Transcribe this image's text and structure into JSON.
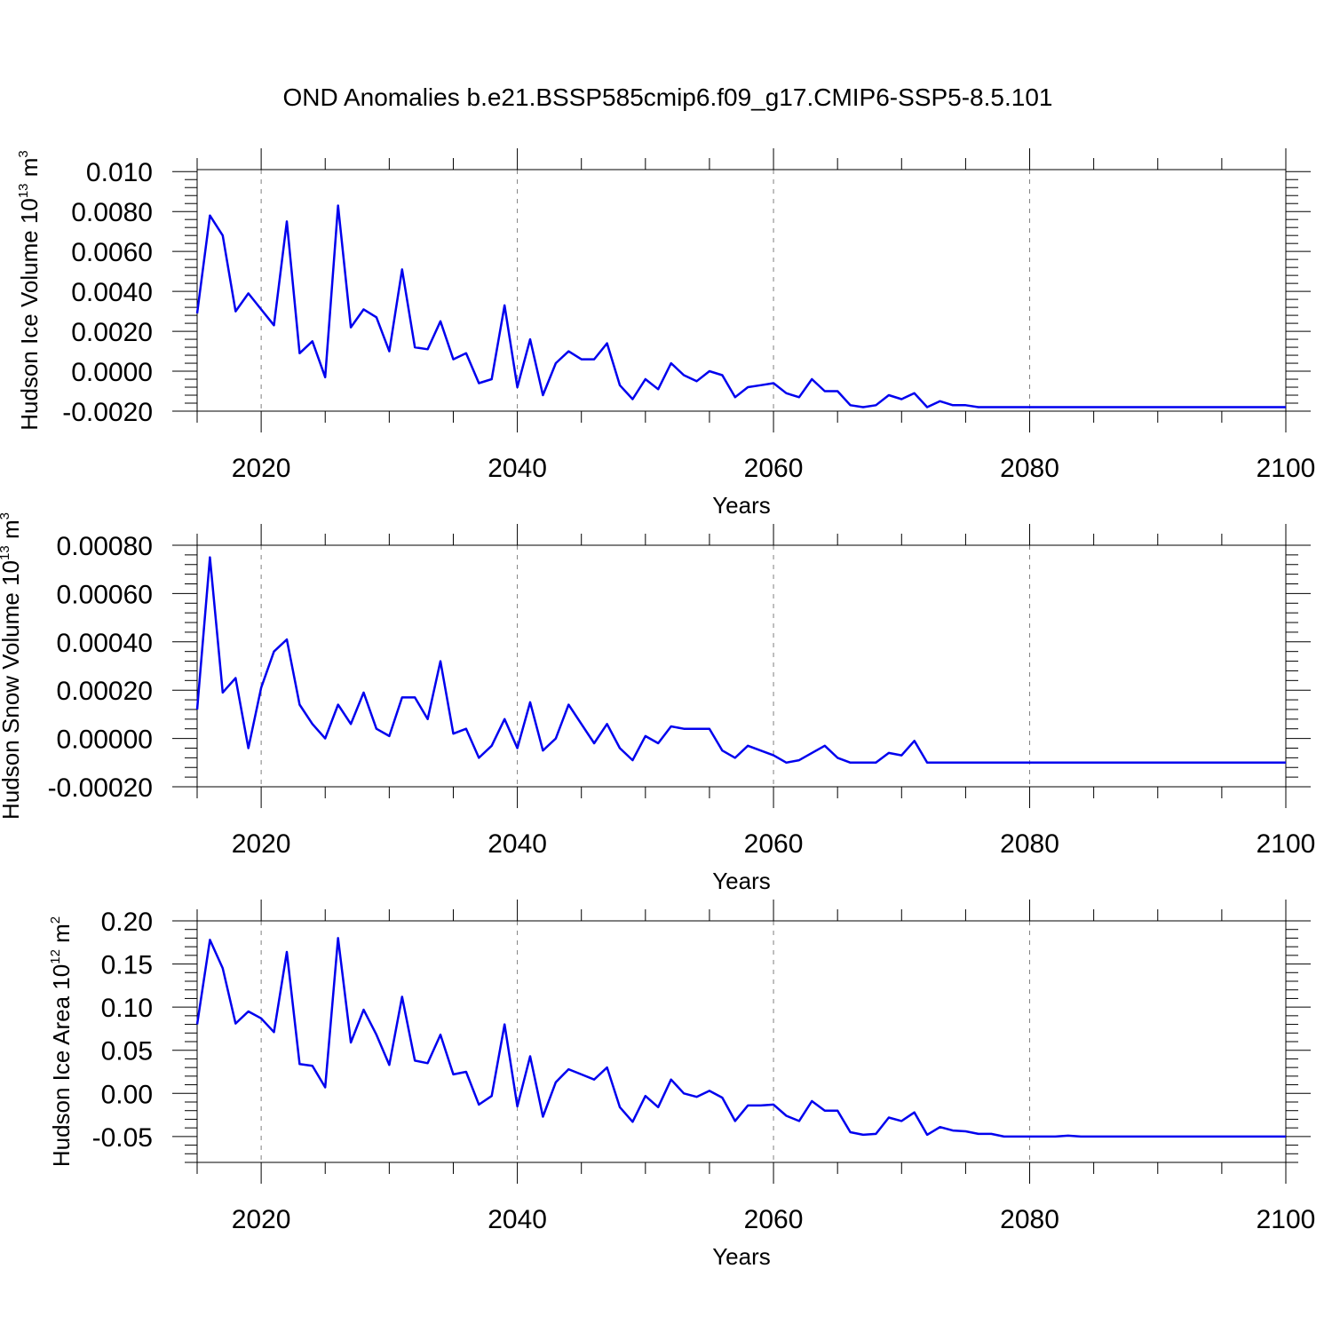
{
  "title": "OND Anomalies b.e21.BSSP585cmip6.f09_g17.CMIP6-SSP5-8.5.101",
  "colors": {
    "line": "#0000ee",
    "axis": "#000000",
    "grid": "#808080"
  },
  "chart_data": [
    {
      "type": "line",
      "name": "ice-volume",
      "ylabel": "Hudson Ice Volume",
      "ylabel_exponent": "13",
      "ylabel_unit": "m",
      "ylabel_unit_power": "3",
      "xlabel": "Years",
      "xlim": [
        2015,
        2100
      ],
      "ylim": [
        -0.002,
        0.0101
      ],
      "xticks": [
        2020,
        2040,
        2060,
        2080,
        2100
      ],
      "xtick_labels": [
        "2020",
        "2040",
        "2060",
        "2080",
        "2100"
      ],
      "yticks": [
        -0.002,
        0.0,
        0.002,
        0.004,
        0.006,
        0.008,
        0.01
      ],
      "ytick_labels": [
        "-0.0020",
        "0.0000",
        "0.0020",
        "0.0040",
        "0.0060",
        "0.0080",
        "0.010"
      ],
      "grid": "vertical dashed at major x ticks",
      "x_start": 2015,
      "values": [
        0.0029,
        0.0078,
        0.0068,
        0.003,
        0.0039,
        0.0031,
        0.0023,
        0.0075,
        0.0009,
        0.0015,
        -0.0003,
        0.0083,
        0.0022,
        0.0031,
        0.0027,
        0.001,
        0.0051,
        0.0012,
        0.0011,
        0.0025,
        0.0006,
        0.0009,
        -0.0006,
        -0.0004,
        0.0033,
        -0.0008,
        0.0016,
        -0.0012,
        0.0004,
        0.001,
        0.0006,
        0.0006,
        0.0014,
        -0.0007,
        -0.0014,
        -0.0004,
        -0.0009,
        0.0004,
        -0.0002,
        -0.0005,
        0.0,
        -0.0002,
        -0.0013,
        -0.0008,
        -0.0007,
        -0.0006,
        -0.0011,
        -0.0013,
        -0.0004,
        -0.001,
        -0.001,
        -0.0017,
        -0.0018,
        -0.0017,
        -0.0012,
        -0.0014,
        -0.0011,
        -0.0018,
        -0.0015,
        -0.0017,
        -0.0017,
        -0.0018,
        -0.0018,
        -0.0018,
        -0.0018,
        -0.0018,
        -0.0018,
        -0.0018,
        -0.0018,
        -0.0018,
        -0.0018,
        -0.0018,
        -0.0018,
        -0.0018,
        -0.0018,
        -0.0018,
        -0.0018,
        -0.0018,
        -0.0018,
        -0.0018,
        -0.0018,
        -0.0018,
        -0.0018,
        -0.0018,
        -0.0018,
        -0.0018
      ]
    },
    {
      "type": "line",
      "name": "snow-volume",
      "ylabel": "Hudson Snow Volume",
      "ylabel_exponent": "13",
      "ylabel_unit": "m",
      "ylabel_unit_power": "3",
      "xlabel": "Years",
      "xlim": [
        2015,
        2100
      ],
      "ylim": [
        -0.0002,
        0.0008
      ],
      "xticks": [
        2020,
        2040,
        2060,
        2080,
        2100
      ],
      "xtick_labels": [
        "2020",
        "2040",
        "2060",
        "2080",
        "2100"
      ],
      "yticks": [
        -0.0002,
        0.0,
        0.0002,
        0.0004,
        0.0006,
        0.0008
      ],
      "ytick_labels": [
        "-0.00020",
        "0.00000",
        "0.00020",
        "0.00040",
        "0.00060",
        "0.00080"
      ],
      "grid": "vertical dashed at major x ticks",
      "x_start": 2015,
      "values": [
        0.00012,
        0.00075,
        0.00019,
        0.00025,
        -4e-05,
        0.00021,
        0.00036,
        0.00041,
        0.00014,
        6e-05,
        0.0,
        0.00014,
        6e-05,
        0.00019,
        4e-05,
        1e-05,
        0.00017,
        0.00017,
        8e-05,
        0.00032,
        2e-05,
        4e-05,
        -8e-05,
        -3e-05,
        8e-05,
        -4e-05,
        0.00015,
        -5e-05,
        0.0,
        0.00014,
        6e-05,
        -2e-05,
        6e-05,
        -4e-05,
        -9e-05,
        1e-05,
        -2e-05,
        5e-05,
        4e-05,
        4e-05,
        4e-05,
        -5e-05,
        -8e-05,
        -3e-05,
        -5e-05,
        -7e-05,
        -0.0001,
        -9e-05,
        -6e-05,
        -3e-05,
        -8e-05,
        -0.0001,
        -0.0001,
        -0.0001,
        -6e-05,
        -7e-05,
        -1e-05,
        -0.0001,
        -0.0001,
        -0.0001,
        -0.0001,
        -0.0001,
        -0.0001,
        -0.0001,
        -0.0001,
        -0.0001,
        -0.0001,
        -0.0001,
        -0.0001,
        -0.0001,
        -0.0001,
        -0.0001,
        -0.0001,
        -0.0001,
        -0.0001,
        -0.0001,
        -0.0001,
        -0.0001,
        -0.0001,
        -0.0001,
        -0.0001,
        -0.0001,
        -0.0001,
        -0.0001,
        -0.0001,
        -0.0001
      ]
    },
    {
      "type": "line",
      "name": "ice-area",
      "ylabel": "Hudson Ice Area",
      "ylabel_exponent": "12",
      "ylabel_unit": "m",
      "ylabel_unit_power": "2",
      "xlabel": "Years",
      "xlim": [
        2015,
        2100
      ],
      "ylim": [
        -0.08,
        0.2
      ],
      "xticks": [
        2020,
        2040,
        2060,
        2080,
        2100
      ],
      "xtick_labels": [
        "2020",
        "2040",
        "2060",
        "2080",
        "2100"
      ],
      "yticks": [
        -0.05,
        0.0,
        0.05,
        0.1,
        0.15,
        0.2
      ],
      "ytick_labels": [
        "-0.05",
        "0.00",
        "0.05",
        "0.10",
        "0.15",
        "0.20"
      ],
      "grid": "vertical dashed at major x ticks",
      "x_start": 2015,
      "values": [
        0.08,
        0.178,
        0.145,
        0.081,
        0.095,
        0.087,
        0.071,
        0.164,
        0.034,
        0.032,
        0.007,
        0.18,
        0.059,
        0.097,
        0.068,
        0.033,
        0.112,
        0.038,
        0.035,
        0.068,
        0.022,
        0.025,
        -0.013,
        -0.003,
        0.08,
        -0.015,
        0.043,
        -0.027,
        0.013,
        0.028,
        0.022,
        0.016,
        0.03,
        -0.016,
        -0.033,
        -0.003,
        -0.016,
        0.016,
        0.0,
        -0.004,
        0.003,
        -0.005,
        -0.032,
        -0.014,
        -0.014,
        -0.013,
        -0.026,
        -0.032,
        -0.009,
        -0.02,
        -0.02,
        -0.045,
        -0.048,
        -0.047,
        -0.028,
        -0.032,
        -0.022,
        -0.048,
        -0.039,
        -0.043,
        -0.044,
        -0.047,
        -0.047,
        -0.05,
        -0.05,
        -0.05,
        -0.05,
        -0.05,
        -0.049,
        -0.05,
        -0.05,
        -0.05,
        -0.05,
        -0.05,
        -0.05,
        -0.05,
        -0.05,
        -0.05,
        -0.05,
        -0.05,
        -0.05,
        -0.05,
        -0.05,
        -0.05,
        -0.05,
        -0.05
      ]
    }
  ]
}
